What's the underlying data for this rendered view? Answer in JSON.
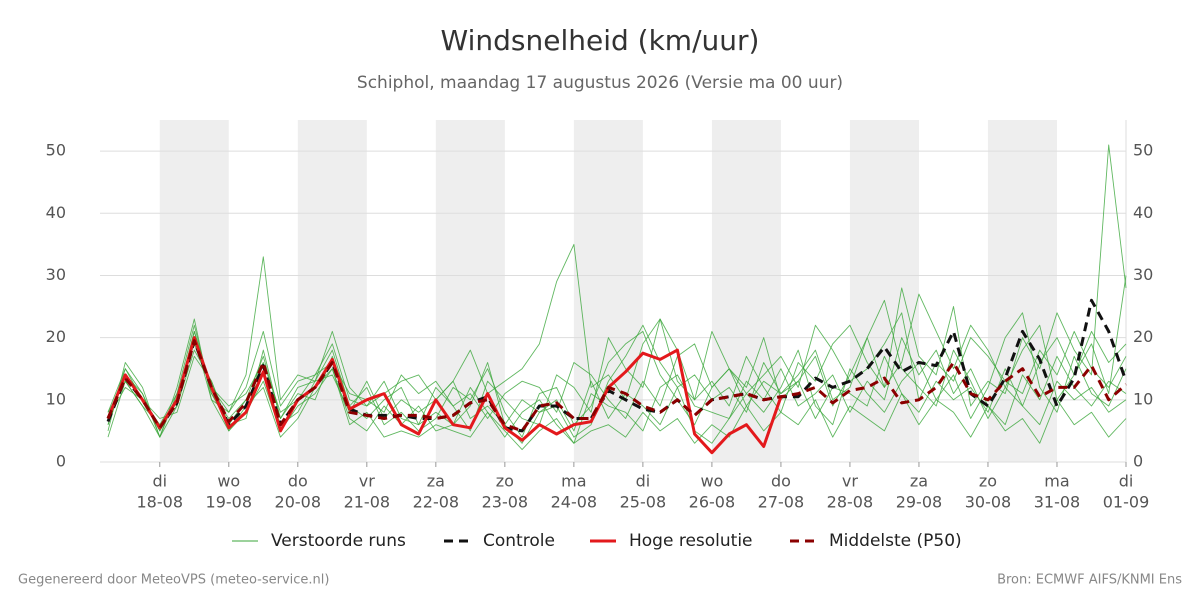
{
  "chart_data": {
    "type": "line",
    "title": "Windsnelheid (km/uur)",
    "subtitle": "Schiphol, maandag 17 augustus 2026 (Versie ma 00 uur)",
    "footer_left": "Gegenereerd door MeteoVPS (meteo-service.nl)",
    "footer_right": "Bron: ECMWF AIFS/KNMI Ens",
    "categories": [
      null,
      null,
      null,
      "18-08",
      null,
      null,
      null,
      "19-08",
      null,
      null,
      null,
      "20-08",
      null,
      null,
      null,
      "21-08",
      null,
      null,
      null,
      "22-08",
      null,
      null,
      null,
      "23-08",
      null,
      null,
      null,
      "24-08",
      null,
      null,
      null,
      "25-08",
      null,
      null,
      null,
      "26-08",
      null,
      null,
      null,
      "27-08",
      null,
      null,
      null,
      "28-08",
      null,
      null,
      null,
      "29-08",
      null,
      null,
      null,
      "30-08",
      null,
      null,
      null,
      "31-08",
      null,
      null,
      null,
      "01-09"
    ],
    "weekdays": [
      null,
      null,
      null,
      "di",
      null,
      null,
      null,
      "wo",
      null,
      null,
      null,
      "do",
      null,
      null,
      null,
      "vr",
      null,
      null,
      null,
      "za",
      null,
      null,
      null,
      "zo",
      null,
      null,
      null,
      "ma",
      null,
      null,
      null,
      "di",
      null,
      null,
      null,
      "wo",
      null,
      null,
      null,
      "do",
      null,
      null,
      null,
      "vr",
      null,
      null,
      null,
      "za",
      null,
      null,
      null,
      "zo",
      null,
      null,
      null,
      "ma",
      null,
      null,
      null,
      "di"
    ],
    "ylim": [
      0,
      55
    ],
    "yticks": [
      0,
      10,
      20,
      30,
      40,
      50
    ],
    "grid": true,
    "ensemble": {
      "name": "Verstoorde runs",
      "color": "#3aa63a",
      "members": [
        [
          6,
          15,
          11,
          4,
          11,
          22,
          11,
          7,
          10,
          17,
          7,
          12,
          13,
          18,
          9,
          12,
          6,
          8,
          5,
          7,
          12,
          10,
          15,
          8,
          4,
          11,
          12,
          6,
          9,
          16,
          19,
          21,
          14,
          10,
          6,
          12,
          15,
          9,
          13,
          11,
          14,
          18,
          10,
          12,
          20,
          26,
          15,
          12,
          9,
          18,
          13,
          7,
          12,
          18,
          22,
          10,
          14,
          21,
          16,
          19
        ],
        [
          8,
          13,
          9,
          6,
          9,
          18,
          13,
          5,
          8,
          13,
          5,
          9,
          11,
          15,
          7,
          5,
          9,
          6,
          9,
          5,
          6,
          12,
          8,
          4,
          8,
          10,
          6,
          3,
          11,
          9,
          8,
          5,
          12,
          14,
          9,
          8,
          7,
          13,
          10,
          15,
          9,
          11,
          14,
          8,
          13,
          10,
          20,
          14,
          18,
          11,
          15,
          9,
          6,
          14,
          10,
          17,
          12,
          9,
          13,
          11
        ],
        [
          5,
          16,
          12,
          4,
          12,
          23,
          10,
          8,
          12,
          21,
          9,
          13,
          14,
          19,
          10,
          9,
          13,
          7,
          6,
          12,
          9,
          5,
          13,
          10,
          7,
          6,
          14,
          12,
          8,
          20,
          15,
          12,
          23,
          18,
          10,
          13,
          9,
          17,
          12,
          8,
          16,
          13,
          19,
          22,
          16,
          12,
          28,
          17,
          14,
          25,
          9,
          13,
          11,
          20,
          15,
          24,
          18,
          14,
          51,
          28
        ],
        [
          7,
          12,
          10,
          7,
          8,
          17,
          13,
          6,
          10,
          14,
          6,
          8,
          13,
          14,
          8,
          13,
          7,
          10,
          8,
          10,
          13,
          7,
          9,
          6,
          10,
          8,
          10,
          5,
          13,
          7,
          11,
          9,
          6,
          12,
          14,
          10,
          12,
          8,
          16,
          11,
          13,
          7,
          12,
          11,
          9,
          17,
          11,
          8,
          13,
          10,
          12,
          8,
          15,
          9,
          6,
          13,
          10,
          12,
          8,
          10
        ],
        [
          6,
          14,
          11,
          5,
          10,
          21,
          11,
          6,
          7,
          18,
          7,
          11,
          10,
          17,
          9,
          7,
          10,
          12,
          6,
          8,
          6,
          9,
          16,
          6,
          3,
          8,
          9,
          4,
          6,
          13,
          17,
          22,
          16,
          12,
          5,
          3,
          7,
          11,
          8,
          12,
          18,
          9,
          6,
          15,
          11,
          8,
          13,
          16,
          10,
          14,
          7,
          12,
          20,
          24,
          12,
          8,
          17,
          11,
          9,
          15
        ],
        [
          8,
          15,
          10,
          6,
          11,
          19,
          12,
          9,
          11,
          16,
          8,
          10,
          14,
          16,
          11,
          10,
          8,
          14,
          11,
          13,
          9,
          11,
          7,
          11,
          13,
          12,
          8,
          16,
          14,
          10,
          7,
          13,
          9,
          17,
          19,
          12,
          15,
          11,
          14,
          17,
          12,
          22,
          18,
          13,
          15,
          19,
          24,
          10,
          16,
          13,
          20,
          17,
          13,
          11,
          18,
          14,
          21,
          15,
          12,
          17
        ],
        [
          4,
          13,
          9,
          4,
          9,
          20,
          10,
          5,
          9,
          12,
          4,
          7,
          12,
          15,
          6,
          8,
          4,
          5,
          4,
          6,
          5,
          4,
          8,
          5,
          2,
          5,
          7,
          3,
          5,
          6,
          4,
          8,
          5,
          7,
          3,
          6,
          4,
          9,
          5,
          8,
          6,
          10,
          4,
          9,
          7,
          5,
          11,
          6,
          10,
          8,
          4,
          9,
          5,
          7,
          3,
          10,
          6,
          8,
          4,
          7
        ],
        [
          7,
          14,
          10,
          5,
          10,
          21,
          12,
          8,
          14,
          33,
          10,
          14,
          13,
          21,
          12,
          9,
          11,
          13,
          14,
          10,
          13,
          18,
          11,
          13,
          15,
          19,
          29,
          35,
          12,
          14,
          10,
          19,
          23,
          13,
          10,
          21,
          15,
          12,
          20,
          10,
          13,
          17,
          9,
          14,
          20,
          12,
          16,
          27,
          21,
          15,
          22,
          18,
          12,
          9,
          16,
          20,
          14,
          19,
          11,
          30
        ]
      ]
    },
    "series": [
      {
        "name": "Controle",
        "color": "#111111",
        "dashed": true,
        "values": [
          6.5,
          13.5,
          10,
          5.5,
          9.5,
          19.5,
          12,
          6,
          9,
          15.5,
          6,
          10,
          12,
          16,
          8.5,
          7.5,
          7.5,
          7.5,
          7,
          7,
          7.5,
          9.5,
          10.5,
          5.5,
          5,
          9,
          9,
          7,
          7,
          11.5,
          10,
          8.5,
          8,
          10,
          7.5,
          10,
          10.5,
          11,
          10,
          10.5,
          10.5,
          13.5,
          12,
          13,
          15,
          18.5,
          14.5,
          16,
          15.5,
          21,
          11,
          9,
          13.5,
          21,
          16.5,
          9,
          13.5,
          26,
          21,
          13
        ]
      },
      {
        "name": "Hoge resolutie",
        "color": "#e3191c",
        "dashed": false,
        "values": [
          7,
          14,
          10,
          5.5,
          10,
          20,
          12,
          5.5,
          8,
          14.5,
          5,
          10,
          12,
          16.5,
          8.5,
          10,
          11,
          6,
          4.5,
          10,
          6,
          5.5,
          11,
          5.5,
          3.5,
          6,
          4.5,
          6,
          6.5,
          12,
          14.5,
          17.5,
          16.5,
          18,
          4.5,
          1.5,
          4.5,
          6,
          2.5,
          10.5,
          null,
          null,
          null,
          null,
          null,
          null,
          null,
          null,
          null,
          null,
          null,
          null,
          null,
          null,
          null,
          null,
          null,
          null,
          null,
          null
        ]
      },
      {
        "name": "Middelste (P50)",
        "color": "#8b0000",
        "dashed": true,
        "values": [
          7,
          13.5,
          10,
          5.5,
          9.5,
          19.5,
          12,
          6.5,
          9.5,
          16,
          6,
          10,
          12,
          16,
          8,
          7.5,
          7,
          7.5,
          7.5,
          7,
          7.5,
          9.5,
          10,
          6,
          5,
          9,
          9.5,
          7,
          7,
          12,
          11,
          9,
          8,
          10,
          7.5,
          10,
          10.5,
          11,
          10,
          10.5,
          11,
          12,
          9.5,
          11.5,
          12,
          13.5,
          9.5,
          10,
          12,
          16,
          11,
          10,
          13,
          15,
          10.5,
          12,
          12,
          15.5,
          10,
          12.5
        ]
      }
    ]
  }
}
